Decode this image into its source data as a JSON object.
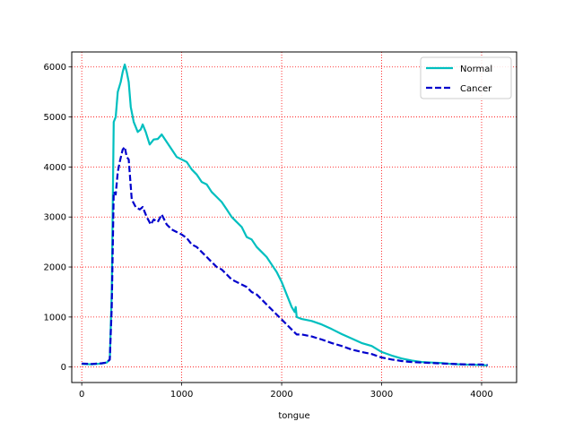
{
  "chart_data": {
    "type": "line",
    "title": "",
    "xlabel": "tongue",
    "ylabel": "",
    "xlim": [
      -100,
      4350
    ],
    "ylim": [
      -310,
      6300
    ],
    "xticks": [
      0,
      1000,
      2000,
      3000,
      4000
    ],
    "yticks": [
      0,
      1000,
      2000,
      3000,
      4000,
      5000,
      6000
    ],
    "grid": true,
    "grid_color": "#ff0000",
    "legend_position": "top-right",
    "series": [
      {
        "name": "Normal",
        "color": "#00bfbf",
        "style": "solid",
        "points": [
          [
            0,
            60
          ],
          [
            100,
            55
          ],
          [
            200,
            70
          ],
          [
            250,
            90
          ],
          [
            280,
            150
          ],
          [
            300,
            1500
          ],
          [
            320,
            4900
          ],
          [
            340,
            5000
          ],
          [
            360,
            5500
          ],
          [
            390,
            5700
          ],
          [
            410,
            5900
          ],
          [
            430,
            6050
          ],
          [
            450,
            5900
          ],
          [
            470,
            5700
          ],
          [
            490,
            5200
          ],
          [
            520,
            4900
          ],
          [
            560,
            4700
          ],
          [
            590,
            4750
          ],
          [
            610,
            4850
          ],
          [
            640,
            4700
          ],
          [
            680,
            4450
          ],
          [
            720,
            4550
          ],
          [
            760,
            4560
          ],
          [
            800,
            4650
          ],
          [
            850,
            4500
          ],
          [
            900,
            4350
          ],
          [
            950,
            4200
          ],
          [
            1000,
            4150
          ],
          [
            1050,
            4100
          ],
          [
            1100,
            3950
          ],
          [
            1150,
            3850
          ],
          [
            1200,
            3700
          ],
          [
            1250,
            3650
          ],
          [
            1300,
            3500
          ],
          [
            1350,
            3400
          ],
          [
            1400,
            3300
          ],
          [
            1450,
            3150
          ],
          [
            1500,
            3000
          ],
          [
            1550,
            2900
          ],
          [
            1600,
            2800
          ],
          [
            1650,
            2600
          ],
          [
            1700,
            2550
          ],
          [
            1750,
            2400
          ],
          [
            1800,
            2300
          ],
          [
            1850,
            2200
          ],
          [
            1900,
            2050
          ],
          [
            1950,
            1900
          ],
          [
            2000,
            1700
          ],
          [
            2050,
            1450
          ],
          [
            2100,
            1200
          ],
          [
            2130,
            1100
          ],
          [
            2140,
            1200
          ],
          [
            2150,
            1000
          ],
          [
            2200,
            960
          ],
          [
            2300,
            920
          ],
          [
            2400,
            850
          ],
          [
            2500,
            760
          ],
          [
            2600,
            660
          ],
          [
            2700,
            570
          ],
          [
            2800,
            480
          ],
          [
            2900,
            420
          ],
          [
            3000,
            300
          ],
          [
            3100,
            230
          ],
          [
            3200,
            170
          ],
          [
            3300,
            130
          ],
          [
            3400,
            100
          ],
          [
            3500,
            90
          ],
          [
            3600,
            80
          ],
          [
            3700,
            60
          ],
          [
            3800,
            50
          ],
          [
            3900,
            45
          ],
          [
            4000,
            40
          ],
          [
            4060,
            30
          ]
        ]
      },
      {
        "name": "Cancer",
        "color": "#0000cc",
        "style": "dashed",
        "points": [
          [
            0,
            70
          ],
          [
            100,
            60
          ],
          [
            200,
            75
          ],
          [
            250,
            90
          ],
          [
            280,
            150
          ],
          [
            300,
            1200
          ],
          [
            320,
            3500
          ],
          [
            340,
            3450
          ],
          [
            360,
            3900
          ],
          [
            380,
            4100
          ],
          [
            410,
            4350
          ],
          [
            430,
            4400
          ],
          [
            450,
            4200
          ],
          [
            470,
            4150
          ],
          [
            500,
            3350
          ],
          [
            540,
            3200
          ],
          [
            580,
            3150
          ],
          [
            610,
            3200
          ],
          [
            650,
            3000
          ],
          [
            690,
            2850
          ],
          [
            720,
            2950
          ],
          [
            760,
            2900
          ],
          [
            800,
            3050
          ],
          [
            850,
            2850
          ],
          [
            900,
            2750
          ],
          [
            950,
            2700
          ],
          [
            1000,
            2650
          ],
          [
            1050,
            2580
          ],
          [
            1100,
            2450
          ],
          [
            1150,
            2400
          ],
          [
            1200,
            2300
          ],
          [
            1250,
            2200
          ],
          [
            1300,
            2100
          ],
          [
            1350,
            2000
          ],
          [
            1400,
            1950
          ],
          [
            1450,
            1850
          ],
          [
            1500,
            1750
          ],
          [
            1550,
            1700
          ],
          [
            1600,
            1650
          ],
          [
            1650,
            1600
          ],
          [
            1700,
            1500
          ],
          [
            1750,
            1450
          ],
          [
            1800,
            1350
          ],
          [
            1850,
            1250
          ],
          [
            1900,
            1150
          ],
          [
            1950,
            1050
          ],
          [
            2000,
            950
          ],
          [
            2050,
            850
          ],
          [
            2100,
            750
          ],
          [
            2150,
            650
          ],
          [
            2200,
            650
          ],
          [
            2300,
            610
          ],
          [
            2400,
            550
          ],
          [
            2500,
            480
          ],
          [
            2600,
            420
          ],
          [
            2700,
            350
          ],
          [
            2800,
            300
          ],
          [
            2900,
            260
          ],
          [
            3000,
            190
          ],
          [
            3100,
            150
          ],
          [
            3200,
            120
          ],
          [
            3300,
            100
          ],
          [
            3400,
            90
          ],
          [
            3500,
            80
          ],
          [
            3600,
            70
          ],
          [
            3700,
            65
          ],
          [
            3800,
            55
          ],
          [
            3900,
            50
          ],
          [
            4000,
            50
          ],
          [
            4060,
            40
          ]
        ]
      }
    ]
  }
}
